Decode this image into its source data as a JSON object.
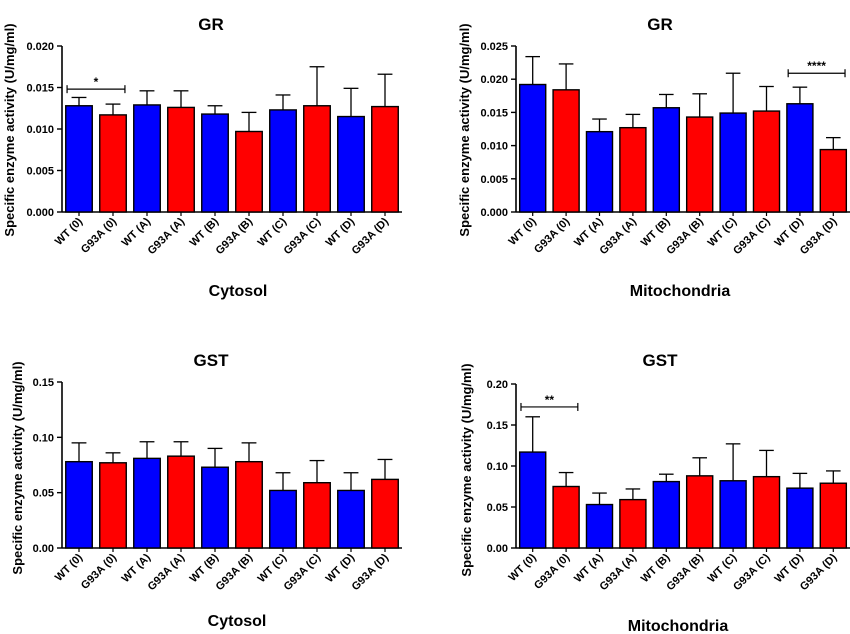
{
  "colors": {
    "wt": "#0000ff",
    "g93a": "#ff0000",
    "axis": "#000000"
  },
  "chart_data": [
    {
      "type": "bar",
      "title": "GR",
      "xlabel": "Cytosol",
      "ylabel": "Specific enzyme activity (U/mg/ml)",
      "categories": [
        "WT (0)",
        "G93A (0)",
        "WT (A)",
        "G93A (A)",
        "WT (B)",
        "G93A (B)",
        "WT (C)",
        "G93A (C)",
        "WT (D)",
        "G93A (D)"
      ],
      "values": [
        0.0128,
        0.0117,
        0.0129,
        0.0126,
        0.0118,
        0.0097,
        0.0123,
        0.0128,
        0.0115,
        0.0127
      ],
      "errors": [
        0.001,
        0.0013,
        0.0017,
        0.002,
        0.001,
        0.0023,
        0.0018,
        0.0047,
        0.0034,
        0.0039
      ],
      "ylim": [
        0,
        0.02
      ],
      "yticks": [
        "0.000",
        "0.005",
        "0.010",
        "0.015",
        "0.020"
      ],
      "grid": false,
      "significance": [
        {
          "from": 0,
          "to": 1,
          "label": "*",
          "y": 0.0148
        }
      ]
    },
    {
      "type": "bar",
      "title": "GR",
      "xlabel": "Mitochondria",
      "ylabel": "Specific enzyme activity (U/mg/ml)",
      "categories": [
        "WT (0)",
        "G93A (0)",
        "WT (A)",
        "G93A (A)",
        "WT (B)",
        "G93A (B)",
        "WT (C)",
        "G93A (C)",
        "WT (D)",
        "G93A (D)"
      ],
      "values": [
        0.0192,
        0.0184,
        0.0121,
        0.0127,
        0.0157,
        0.0143,
        0.0149,
        0.0152,
        0.0163,
        0.0094
      ],
      "errors": [
        0.0042,
        0.0039,
        0.0019,
        0.002,
        0.002,
        0.0035,
        0.006,
        0.0037,
        0.0025,
        0.0018
      ],
      "ylim": [
        0,
        0.025
      ],
      "yticks": [
        "0.000",
        "0.005",
        "0.010",
        "0.015",
        "0.020",
        "0.025"
      ],
      "grid": false,
      "significance": [
        {
          "from": 8,
          "to": 9,
          "label": "****",
          "y": 0.0209
        }
      ]
    },
    {
      "type": "bar",
      "title": "GST",
      "xlabel": "Cytosol",
      "ylabel": "Specific enzyme activity (U/mg/ml)",
      "categories": [
        "WT (0)",
        "G93A (0)",
        "WT (A)",
        "G93A (A)",
        "WT (B)",
        "G93A (B)",
        "WT (C)",
        "G93A (C)",
        "WT (D)",
        "G93A (D)"
      ],
      "values": [
        0.078,
        0.077,
        0.081,
        0.083,
        0.073,
        0.078,
        0.052,
        0.059,
        0.052,
        0.062
      ],
      "errors": [
        0.017,
        0.009,
        0.015,
        0.013,
        0.017,
        0.017,
        0.016,
        0.02,
        0.016,
        0.018
      ],
      "ylim": [
        0,
        0.15
      ],
      "yticks": [
        "0.00",
        "0.05",
        "0.10",
        "0.15"
      ],
      "grid": false,
      "significance": []
    },
    {
      "type": "bar",
      "title": "GST",
      "xlabel": "Mitochondria",
      "ylabel": "Specific enzyme activity (U/mg/ml)",
      "categories": [
        "WT (0)",
        "G93A (0)",
        "WT (A)",
        "G93A (A)",
        "WT (B)",
        "G93A (B)",
        "WT (C)",
        "G93A (C)",
        "WT (D)",
        "G93A (D)"
      ],
      "values": [
        0.117,
        0.075,
        0.053,
        0.059,
        0.081,
        0.088,
        0.082,
        0.087,
        0.073,
        0.079
      ],
      "errors": [
        0.043,
        0.017,
        0.014,
        0.013,
        0.009,
        0.022,
        0.045,
        0.032,
        0.018,
        0.015
      ],
      "ylim": [
        0,
        0.2
      ],
      "yticks": [
        "0.00",
        "0.05",
        "0.10",
        "0.15",
        "0.20"
      ],
      "grid": false,
      "significance": [
        {
          "from": 0,
          "to": 1,
          "label": "**",
          "y": 0.172
        }
      ]
    }
  ]
}
